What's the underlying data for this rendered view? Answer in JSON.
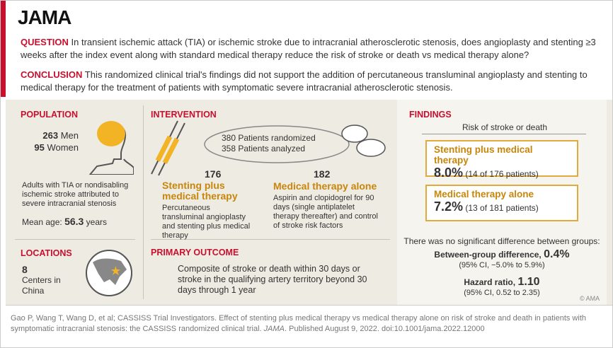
{
  "header": {
    "logo": "JAMA"
  },
  "question": {
    "label": "QUESTION",
    "text": "In transient ischemic attack (TIA) or ischemic stroke due to intracranial atherosclerotic stenosis, does angioplasty and stenting ≥3 weeks after the index event along with standard medical therapy reduce the risk of stroke or death vs medical therapy alone?"
  },
  "conclusion": {
    "label": "CONCLUSION",
    "text": "This randomized clinical trial's findings did not support the addition of percutaneous transluminal angioplasty and stenting to medical therapy for the treatment of patients with symptomatic severe intracranial atherosclerotic stenosis."
  },
  "population": {
    "label": "POPULATION",
    "men_count": "263",
    "men_label": "Men",
    "women_count": "95",
    "women_label": "Women",
    "description": "Adults with TIA or nondisabling ischemic stroke attributed to severe intracranial stenosis",
    "mean_age_label": "Mean age:",
    "mean_age_value": "56.3",
    "mean_age_unit": "years"
  },
  "locations": {
    "label": "LOCATIONS",
    "count": "8",
    "text": "Centers in China"
  },
  "intervention": {
    "label": "INTERVENTION",
    "randomized": "380 Patients randomized",
    "analyzed": "358 Patients analyzed",
    "arms": [
      {
        "count": "176",
        "name": "Stenting plus medical therapy",
        "description": "Percutaneous transluminal angioplasty and stenting plus medical therapy"
      },
      {
        "count": "182",
        "name": "Medical therapy alone",
        "description": "Aspirin and clopidogrel for 90 days (single antiplatelet therapy thereafter) and control of stroke risk factors"
      }
    ]
  },
  "primary_outcome": {
    "label": "PRIMARY OUTCOME",
    "text": "Composite of stroke or death within 30 days or stroke in the qualifying artery territory beyond 30 days through 1 year"
  },
  "findings": {
    "label": "FINDINGS",
    "subtitle": "Risk of stroke or death",
    "results": [
      {
        "name": "Stenting plus medical therapy",
        "value": "8.0%",
        "detail": "(14 of 176 patients)"
      },
      {
        "name": "Medical therapy alone",
        "value": "7.2%",
        "detail": "(13 of 181 patients)"
      }
    ],
    "note": "There was no significant difference between groups:",
    "difference_label": "Between-group difference,",
    "difference_value": "0.4%",
    "difference_ci": "(95% CI, −5.0% to 5.9%)",
    "hr_label": "Hazard ratio,",
    "hr_value": "1.10",
    "hr_ci": "(95% CI, 0.52 to 2.35)",
    "copyright": "© AMA"
  },
  "citation": {
    "before": "Gao P, Wang T, Wang D, et al; CASSISS Trial Investigators. Effect of stenting plus medical therapy vs medical therapy alone on risk of stroke and death in patients with symptomatic intracranial stenosis: the CASSISS randomized clinical trial.",
    "journal": "JAMA",
    "after": ". Published August 9, 2022. doi:10.1001/jama.2022.12000"
  }
}
